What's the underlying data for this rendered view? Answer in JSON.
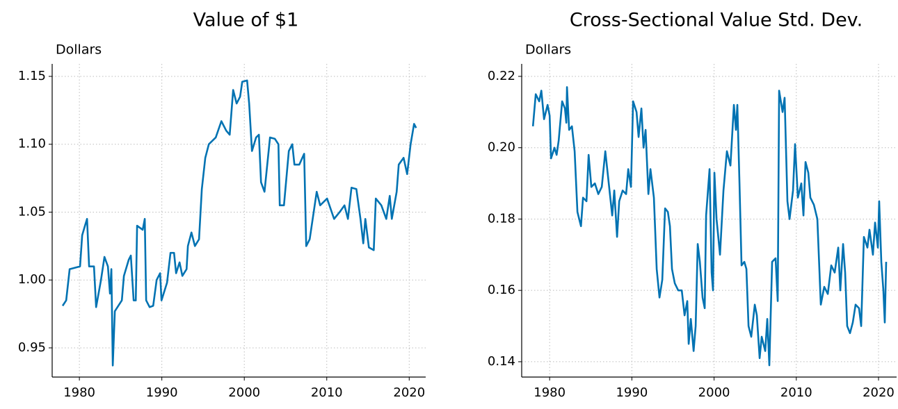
{
  "chart_data": [
    {
      "type": "line",
      "title": "Value of $1",
      "y_label": "Dollars",
      "color": "#0072b2",
      "grid": true,
      "xlim": [
        1976.7,
        2022.0
      ],
      "xticks": [
        1980,
        1990,
        2000,
        2010,
        2020
      ],
      "ylim": [
        0.9285,
        1.1592
      ],
      "yticks": [
        0.95,
        {
          "value": 1,
          "label": "1.00"
        },
        1.05,
        {
          "value": 1.1,
          "label": "1.10"
        },
        1.15
      ],
      "x": [
        1977.97,
        1978.4,
        1978.82,
        1980.08,
        1980.34,
        1980.68,
        1980.93,
        1981.18,
        1981.77,
        1982.03,
        1982.62,
        1983.04,
        1983.46,
        1983.71,
        1983.88,
        1984.05,
        1984.3,
        1985.15,
        1985.4,
        1985.99,
        1986.24,
        1986.58,
        1986.84,
        1987.0,
        1987.68,
        1987.93,
        1988.1,
        1988.52,
        1988.95,
        1989.37,
        1989.79,
        1989.96,
        1990.63,
        1991.05,
        1991.48,
        1991.73,
        1992.15,
        1992.49,
        1993.0,
        1993.16,
        1993.59,
        1994.01,
        1994.51,
        1994.85,
        1995.27,
        1995.7,
        1996.54,
        1997.22,
        1997.81,
        1998.23,
        1998.65,
        1999.07,
        1999.49,
        1999.75,
        2000.34,
        2000.59,
        2000.93,
        2001.43,
        2001.77,
        2002.03,
        2002.45,
        2003.12,
        2003.71,
        2004.14,
        2004.3,
        2004.81,
        2005.4,
        2005.82,
        2006.08,
        2006.67,
        2007.26,
        2007.51,
        2007.93,
        2008.78,
        2009.2,
        2010.04,
        2010.89,
        2011.56,
        2012.15,
        2012.57,
        2013.0,
        2013.59,
        2014.09,
        2014.43,
        2014.68,
        2015.11,
        2015.7,
        2015.95,
        2016.62,
        2017.22,
        2017.64,
        2017.89,
        2018.48,
        2018.73,
        2019.32,
        2019.75,
        2020.17,
        2020.59,
        2020.84
      ],
      "values": [
        0.981,
        0.985,
        1.008,
        1.01,
        1.033,
        1.04,
        1.045,
        1.01,
        1.01,
        0.98,
        1.0,
        1.017,
        1.01,
        0.99,
        1.008,
        0.937,
        0.977,
        0.985,
        1.003,
        1.015,
        1.018,
        0.985,
        0.985,
        1.04,
        1.037,
        1.045,
        0.985,
        0.98,
        0.981,
        1.0,
        1.005,
        0.985,
        0.998,
        1.02,
        1.02,
        1.005,
        1.013,
        1.003,
        1.008,
        1.025,
        1.035,
        1.025,
        1.03,
        1.067,
        1.09,
        1.1,
        1.105,
        1.117,
        1.11,
        1.107,
        1.14,
        1.13,
        1.135,
        1.146,
        1.147,
        1.13,
        1.095,
        1.105,
        1.107,
        1.072,
        1.065,
        1.105,
        1.104,
        1.1,
        1.055,
        1.055,
        1.095,
        1.1,
        1.085,
        1.085,
        1.093,
        1.025,
        1.03,
        1.065,
        1.055,
        1.06,
        1.045,
        1.05,
        1.055,
        1.045,
        1.068,
        1.067,
        1.045,
        1.027,
        1.045,
        1.024,
        1.022,
        1.06,
        1.055,
        1.045,
        1.062,
        1.045,
        1.065,
        1.085,
        1.09,
        1.078,
        1.1,
        1.115,
        1.112
      ]
    },
    {
      "type": "line",
      "title": "Cross-Sectional Value Std. Dev.",
      "y_label": "Dollars",
      "color": "#0072b2",
      "grid": true,
      "xlim": [
        1976.6,
        2022.2
      ],
      "xticks": [
        1980,
        1990,
        2000,
        2010,
        2020
      ],
      "ylim": [
        0.1357,
        0.2235
      ],
      "yticks": [
        0.14,
        0.16,
        0.18,
        {
          "value": 0.2,
          "label": "0.20"
        },
        {
          "value": 0.22,
          "label": "0.22"
        }
      ],
      "x": [
        1977.97,
        1978.31,
        1978.73,
        1978.99,
        1979.32,
        1979.75,
        1980.0,
        1980.17,
        1980.59,
        1980.85,
        1981.1,
        1981.52,
        1981.86,
        1982.03,
        1982.11,
        1982.37,
        1982.71,
        1983.04,
        1983.38,
        1983.81,
        1984.06,
        1984.48,
        1984.74,
        1985.07,
        1985.5,
        1985.92,
        1986.34,
        1986.77,
        1987.19,
        1987.61,
        1987.86,
        1988.2,
        1988.46,
        1988.88,
        1989.3,
        1989.56,
        1989.89,
        1990.15,
        1990.57,
        1990.82,
        1991.16,
        1991.42,
        1991.67,
        1992.01,
        1992.26,
        1992.68,
        1993.02,
        1993.36,
        1993.7,
        1994.04,
        1994.38,
        1994.63,
        1994.88,
        1995.22,
        1995.64,
        1996.07,
        1996.41,
        1996.74,
        1996.91,
        1997.17,
        1997.51,
        1997.76,
        1998.01,
        1998.27,
        1998.6,
        1998.86,
        1999.03,
        1999.45,
        1999.7,
        1999.87,
        2000.04,
        2000.3,
        2000.72,
        2001.14,
        2001.56,
        2001.99,
        2002.41,
        2002.66,
        2002.83,
        2003.09,
        2003.34,
        2003.68,
        2003.93,
        2004.19,
        2004.52,
        2004.95,
        2005.2,
        2005.54,
        2005.79,
        2006.22,
        2006.47,
        2006.72,
        2007.06,
        2007.48,
        2007.74,
        2007.91,
        2008.33,
        2008.58,
        2008.92,
        2009.18,
        2009.6,
        2009.85,
        2010.19,
        2010.61,
        2010.87,
        2011.12,
        2011.46,
        2011.71,
        2012.14,
        2012.56,
        2012.98,
        2013.4,
        2013.83,
        2014.25,
        2014.67,
        2015.1,
        2015.35,
        2015.69,
        2015.94,
        2016.19,
        2016.53,
        2016.87,
        2017.21,
        2017.63,
        2017.89,
        2018.22,
        2018.65,
        2018.9,
        2019.32,
        2019.58,
        2019.92,
        2020.08,
        2020.34,
        2020.59,
        2020.76,
        2020.93
      ],
      "values": [
        0.206,
        0.215,
        0.213,
        0.216,
        0.208,
        0.212,
        0.209,
        0.197,
        0.2,
        0.198,
        0.202,
        0.213,
        0.211,
        0.207,
        0.217,
        0.205,
        0.206,
        0.199,
        0.182,
        0.178,
        0.186,
        0.185,
        0.198,
        0.189,
        0.19,
        0.187,
        0.189,
        0.199,
        0.19,
        0.181,
        0.188,
        0.175,
        0.185,
        0.188,
        0.187,
        0.194,
        0.189,
        0.213,
        0.21,
        0.203,
        0.211,
        0.2,
        0.205,
        0.187,
        0.194,
        0.186,
        0.166,
        0.158,
        0.163,
        0.183,
        0.182,
        0.178,
        0.166,
        0.162,
        0.16,
        0.16,
        0.153,
        0.157,
        0.145,
        0.152,
        0.143,
        0.15,
        0.173,
        0.168,
        0.158,
        0.155,
        0.181,
        0.194,
        0.165,
        0.16,
        0.193,
        0.18,
        0.17,
        0.188,
        0.199,
        0.195,
        0.212,
        0.205,
        0.212,
        0.19,
        0.167,
        0.168,
        0.166,
        0.15,
        0.147,
        0.156,
        0.153,
        0.141,
        0.147,
        0.143,
        0.152,
        0.139,
        0.168,
        0.169,
        0.157,
        0.216,
        0.21,
        0.214,
        0.185,
        0.18,
        0.188,
        0.201,
        0.186,
        0.19,
        0.181,
        0.196,
        0.193,
        0.186,
        0.184,
        0.18,
        0.156,
        0.161,
        0.159,
        0.167,
        0.165,
        0.172,
        0.16,
        0.173,
        0.165,
        0.15,
        0.148,
        0.151,
        0.156,
        0.155,
        0.15,
        0.175,
        0.172,
        0.177,
        0.17,
        0.179,
        0.172,
        0.185,
        0.168,
        0.16,
        0.151,
        0.168
      ]
    }
  ]
}
